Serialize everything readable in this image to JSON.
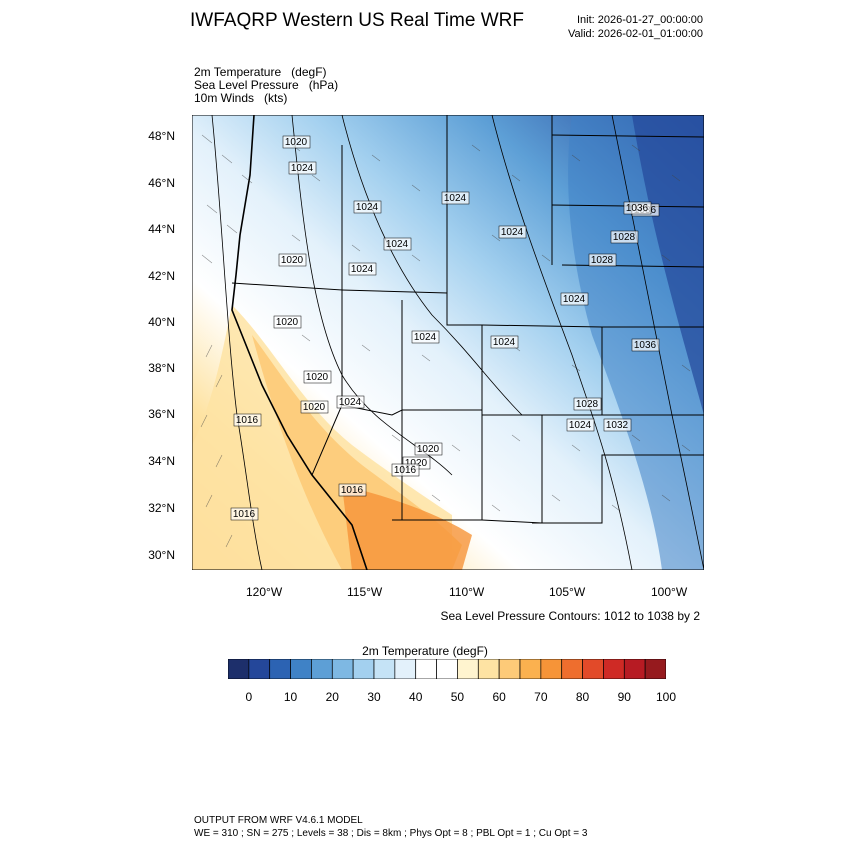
{
  "header": {
    "title": "IWFAQRP Western US Real Time WRF",
    "init": "Init: 2026-01-27_00:00:00",
    "valid": "Valid: 2026-02-01_01:00:00"
  },
  "fields": [
    {
      "name": "2m Temperature",
      "unit": "(degF)"
    },
    {
      "name": "Sea Level Pressure",
      "unit": "(hPa)"
    },
    {
      "name": "10m Winds",
      "unit": "(kts)"
    }
  ],
  "map": {
    "lat_labels": [
      "48°N",
      "46°N",
      "44°N",
      "42°N",
      "40°N",
      "38°N",
      "36°N",
      "34°N",
      "32°N",
      "30°N"
    ],
    "lon_labels": [
      "120°W",
      "115°W",
      "110°W",
      "105°W",
      "100°W"
    ],
    "pressure_labels": [
      "1020",
      "1024",
      "1024",
      "1024",
      "1024",
      "1024",
      "1024",
      "1036",
      "1028",
      "1028",
      "1020",
      "1024",
      "1024",
      "1020",
      "1024",
      "1036",
      "1020",
      "1024",
      "1032",
      "1020",
      "1020",
      "1028",
      "1016",
      "1020",
      "1016",
      "1016",
      "1016",
      "1024",
      "1036"
    ]
  },
  "slp_caption": "Sea Level Pressure Contours: 1012 to 1038 by 2",
  "colorbar": {
    "title": "2m Temperature  (degF)",
    "labels": [
      "0",
      "10",
      "20",
      "30",
      "40",
      "50",
      "60",
      "70",
      "80",
      "90",
      "100"
    ],
    "colors": [
      "#1d2f6b",
      "#24479a",
      "#2c63b3",
      "#3f82c6",
      "#5d9fd6",
      "#7eb8e3",
      "#a3d0ef",
      "#c5e3f6",
      "#e3f1fb",
      "#ffffff",
      "#ffffff",
      "#fff4cf",
      "#fee3a3",
      "#fdca78",
      "#fbb14f",
      "#f69438",
      "#ee6e2e",
      "#e24a29",
      "#cf2a25",
      "#b71b23",
      "#961a1e"
    ]
  },
  "footer": {
    "line1": "OUTPUT FROM WRF V4.6.1 MODEL",
    "line2": "WE = 310 ; SN = 275 ; Levels = 38 ; Dis = 8km ; Phys Opt = 8 ; PBL Opt = 1 ; Cu Opt = 3"
  }
}
